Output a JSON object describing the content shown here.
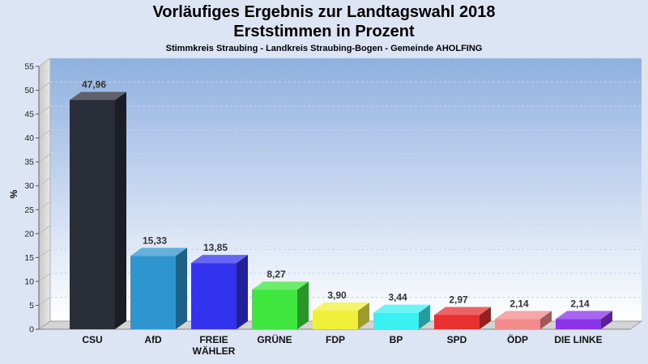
{
  "chart_data": {
    "type": "bar",
    "title": "Vorläufiges Ergebnis zur Landtagswahl 2018",
    "subtitle": "Erststimmen in Prozent",
    "subtitle2": "Stimmkreis Straubing - Landkreis Straubing-Bogen - Gemeinde AHOLFING",
    "ylabel": "%",
    "xlabel": "",
    "ylim": [
      0,
      55
    ],
    "yticks": [
      "0",
      "5",
      "10",
      "15",
      "20",
      "25",
      "30",
      "35",
      "40",
      "45",
      "50",
      "55"
    ],
    "grid": true,
    "categories": [
      "CSU",
      "AfD",
      "FREIE WÄHLER",
      "GRÜNE",
      "FDP",
      "BP",
      "SPD",
      "ÖDP",
      "DIE LINKE"
    ],
    "category_lines": [
      [
        "CSU"
      ],
      [
        "AfD"
      ],
      [
        "FREIE",
        "WÄHLER"
      ],
      [
        "GRÜNE"
      ],
      [
        "FDP"
      ],
      [
        "BP"
      ],
      [
        "SPD"
      ],
      [
        "ÖDP"
      ],
      [
        "DIE LINKE"
      ]
    ],
    "values": [
      47.96,
      15.33,
      13.85,
      8.27,
      3.9,
      3.44,
      2.97,
      2.14,
      2.14
    ],
    "value_labels": [
      "47,96",
      "15,33",
      "13,85",
      "8,27",
      "3,90",
      "3,44",
      "2,97",
      "2,14",
      "2,14"
    ],
    "colors": [
      "#2a2e38",
      "#2e95cf",
      "#3333ee",
      "#3ee63e",
      "#f0f03a",
      "#3af0f0",
      "#e83030",
      "#f48a8a",
      "#8a33e8"
    ]
  }
}
